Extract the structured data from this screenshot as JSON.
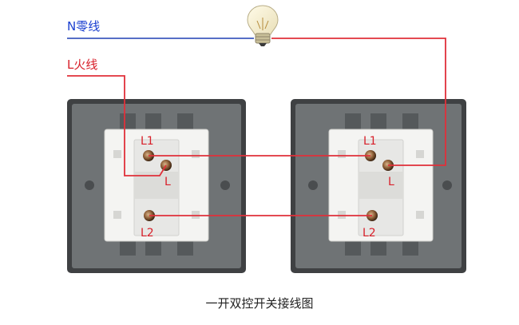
{
  "labels": {
    "neutral": "N零线",
    "live": "L火线",
    "caption": "一开双控开关接线图"
  },
  "switch_left": {
    "l1": "L1",
    "l": "L",
    "l2": "L2"
  },
  "switch_right": {
    "l1": "L1",
    "l": "L",
    "l2": "L2"
  },
  "colors": {
    "neutral_wire": "#1f3fb4",
    "live_wire": "#e0303a",
    "neutral_text": "#1a3fd0",
    "live_text": "#d8202a",
    "plate": "#6f7375",
    "plate_edge": "#3c3e40",
    "module": "#f4f4f2",
    "terminal": "#e7e7e5"
  },
  "icons": {
    "lamp": "light-bulb-icon"
  }
}
